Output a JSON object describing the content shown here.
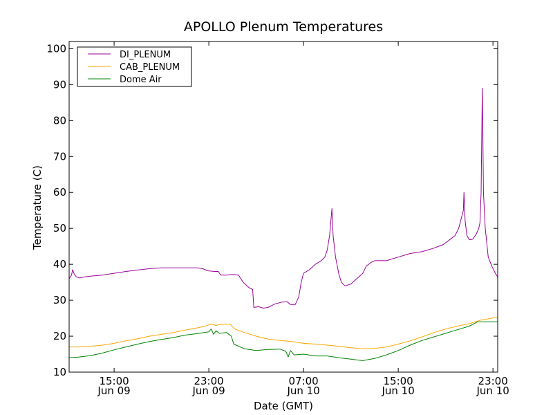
{
  "chart_data": {
    "type": "line",
    "title": "APOLLO Plenum Temperatures",
    "xlabel": "Date (GMT)",
    "ylabel": "Temperature (C)",
    "xlim": [
      11.2,
      47.4
    ],
    "ylim": [
      10,
      102
    ],
    "grid": false,
    "legend_position": "top-left",
    "x_unit": "hours since Jun 09 00:00 GMT",
    "x_ticks": [
      {
        "value": 15,
        "time": "15:00",
        "date": "Jun 09"
      },
      {
        "value": 23,
        "time": "23:00",
        "date": "Jun 09"
      },
      {
        "value": 31,
        "time": "07:00",
        "date": "Jun 10"
      },
      {
        "value": 39,
        "time": "15:00",
        "date": "Jun 10"
      },
      {
        "value": 47,
        "time": "23:00",
        "date": "Jun 10"
      }
    ],
    "y_ticks": [
      10,
      20,
      30,
      40,
      50,
      60,
      70,
      80,
      90,
      100
    ],
    "series": [
      {
        "name": "DI_PLENUM",
        "color": "#990099",
        "points": [
          [
            11.2,
            36.0
          ],
          [
            11.4,
            37.0
          ],
          [
            11.5,
            38.5
          ],
          [
            11.6,
            37.5
          ],
          [
            11.8,
            36.5
          ],
          [
            12.1,
            36.2
          ],
          [
            12.5,
            36.5
          ],
          [
            13.0,
            36.7
          ],
          [
            14.0,
            37.0
          ],
          [
            15.0,
            37.5
          ],
          [
            16.0,
            38.0
          ],
          [
            17.0,
            38.4
          ],
          [
            18.0,
            38.8
          ],
          [
            19.0,
            39.0
          ],
          [
            20.0,
            39.0
          ],
          [
            21.0,
            39.0
          ],
          [
            22.0,
            39.0
          ],
          [
            22.5,
            38.8
          ],
          [
            22.9,
            38.2
          ],
          [
            23.5,
            38.0
          ],
          [
            23.8,
            38.0
          ],
          [
            24.0,
            37.0
          ],
          [
            24.5,
            37.0
          ],
          [
            25.0,
            37.2
          ],
          [
            25.5,
            37.0
          ],
          [
            25.9,
            35.0
          ],
          [
            26.4,
            33.5
          ],
          [
            26.7,
            33.0
          ],
          [
            26.8,
            28.0
          ],
          [
            27.2,
            28.2
          ],
          [
            27.6,
            27.8
          ],
          [
            28.0,
            28.0
          ],
          [
            28.6,
            29.0
          ],
          [
            29.2,
            29.5
          ],
          [
            29.6,
            29.6
          ],
          [
            29.9,
            28.8
          ],
          [
            30.3,
            28.8
          ],
          [
            30.6,
            31.0
          ],
          [
            30.8,
            35.0
          ],
          [
            31.0,
            37.5
          ],
          [
            31.5,
            38.5
          ],
          [
            32.0,
            40.0
          ],
          [
            32.5,
            41.0
          ],
          [
            32.8,
            42.0
          ],
          [
            33.0,
            44.0
          ],
          [
            33.2,
            48.0
          ],
          [
            33.4,
            55.5
          ],
          [
            33.5,
            48.0
          ],
          [
            33.7,
            42.0
          ],
          [
            34.0,
            37.0
          ],
          [
            34.2,
            35.0
          ],
          [
            34.5,
            34.0
          ],
          [
            35.0,
            34.5
          ],
          [
            35.5,
            36.0
          ],
          [
            36.0,
            37.5
          ],
          [
            36.3,
            39.5
          ],
          [
            36.7,
            40.5
          ],
          [
            37.0,
            41.0
          ],
          [
            38.0,
            41.0
          ],
          [
            39.0,
            42.0
          ],
          [
            40.0,
            43.0
          ],
          [
            41.0,
            43.5
          ],
          [
            42.0,
            44.5
          ],
          [
            42.8,
            45.5
          ],
          [
            43.4,
            47.0
          ],
          [
            43.8,
            48.0
          ],
          [
            44.1,
            50.0
          ],
          [
            44.3,
            52.5
          ],
          [
            44.5,
            55.0
          ],
          [
            44.55,
            60.0
          ],
          [
            44.65,
            52.0
          ],
          [
            44.8,
            48.0
          ],
          [
            45.0,
            46.8
          ],
          [
            45.3,
            47.0
          ],
          [
            45.6,
            48.5
          ],
          [
            45.8,
            50.0
          ],
          [
            45.9,
            51.5
          ],
          [
            46.0,
            60.0
          ],
          [
            46.05,
            75.0
          ],
          [
            46.1,
            89.0
          ],
          [
            46.15,
            75.0
          ],
          [
            46.2,
            60.0
          ],
          [
            46.35,
            50.0
          ],
          [
            46.6,
            42.0
          ],
          [
            46.9,
            39.5
          ],
          [
            47.2,
            37.5
          ],
          [
            47.4,
            36.5
          ]
        ]
      },
      {
        "name": "CAB_PLENUM",
        "color": "#ffa500",
        "points": [
          [
            11.2,
            17.0
          ],
          [
            12.0,
            17.0
          ],
          [
            13.0,
            17.2
          ],
          [
            14.0,
            17.5
          ],
          [
            15.0,
            18.0
          ],
          [
            16.0,
            18.7
          ],
          [
            17.0,
            19.3
          ],
          [
            18.0,
            20.0
          ],
          [
            19.0,
            20.5
          ],
          [
            20.0,
            21.0
          ],
          [
            21.0,
            21.7
          ],
          [
            22.0,
            22.3
          ],
          [
            22.8,
            22.9
          ],
          [
            23.2,
            23.4
          ],
          [
            23.6,
            23.0
          ],
          [
            24.0,
            23.3
          ],
          [
            24.8,
            23.3
          ],
          [
            25.2,
            22.0
          ],
          [
            26.0,
            21.0
          ],
          [
            27.0,
            20.0
          ],
          [
            28.0,
            19.2
          ],
          [
            29.0,
            18.8
          ],
          [
            30.0,
            18.5
          ],
          [
            31.0,
            18.0
          ],
          [
            32.0,
            17.8
          ],
          [
            33.0,
            17.5
          ],
          [
            34.0,
            17.2
          ],
          [
            35.0,
            16.8
          ],
          [
            36.0,
            16.5
          ],
          [
            37.0,
            16.6
          ],
          [
            38.0,
            17.0
          ],
          [
            39.0,
            17.8
          ],
          [
            40.0,
            18.7
          ],
          [
            41.0,
            19.8
          ],
          [
            42.0,
            21.0
          ],
          [
            43.0,
            22.0
          ],
          [
            44.0,
            22.8
          ],
          [
            45.0,
            23.5
          ],
          [
            46.0,
            24.5
          ],
          [
            47.4,
            25.3
          ]
        ]
      },
      {
        "name": "Dome Air",
        "color": "#008000",
        "points": [
          [
            11.2,
            14.0
          ],
          [
            12.0,
            14.2
          ],
          [
            13.0,
            14.6
          ],
          [
            14.0,
            15.3
          ],
          [
            15.0,
            16.2
          ],
          [
            16.0,
            17.0
          ],
          [
            17.0,
            17.8
          ],
          [
            18.0,
            18.5
          ],
          [
            19.0,
            19.1
          ],
          [
            20.0,
            19.6
          ],
          [
            21.0,
            20.3
          ],
          [
            22.0,
            20.7
          ],
          [
            23.0,
            21.2
          ],
          [
            23.2,
            22.0
          ],
          [
            23.4,
            20.5
          ],
          [
            23.6,
            21.5
          ],
          [
            23.9,
            20.8
          ],
          [
            24.5,
            21.0
          ],
          [
            24.9,
            20.0
          ],
          [
            25.1,
            17.8
          ],
          [
            26.0,
            16.5
          ],
          [
            27.0,
            16.0
          ],
          [
            28.0,
            16.3
          ],
          [
            29.0,
            16.4
          ],
          [
            29.5,
            15.8
          ],
          [
            29.7,
            14.2
          ],
          [
            29.9,
            16.0
          ],
          [
            30.2,
            14.8
          ],
          [
            31.0,
            15.0
          ],
          [
            32.0,
            14.5
          ],
          [
            33.0,
            14.5
          ],
          [
            34.0,
            14.0
          ],
          [
            35.0,
            13.6
          ],
          [
            36.0,
            13.2
          ],
          [
            37.0,
            13.8
          ],
          [
            38.0,
            14.8
          ],
          [
            39.0,
            16.0
          ],
          [
            40.0,
            17.5
          ],
          [
            41.0,
            18.8
          ],
          [
            42.0,
            19.8
          ],
          [
            43.0,
            20.8
          ],
          [
            44.0,
            21.8
          ],
          [
            45.0,
            22.8
          ],
          [
            45.7,
            24.0
          ],
          [
            46.5,
            24.0
          ],
          [
            47.4,
            24.0
          ]
        ]
      }
    ]
  }
}
